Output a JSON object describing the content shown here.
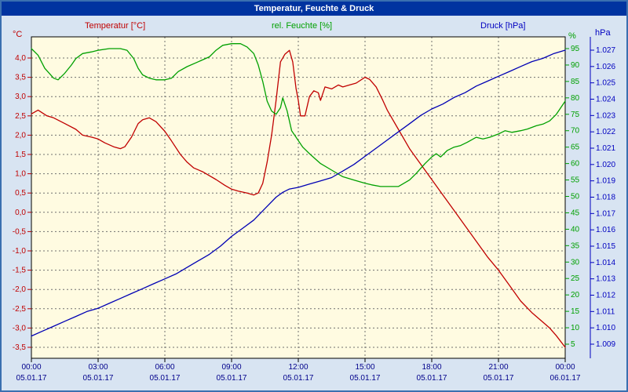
{
  "window": {
    "title": "Temperatur, Feuchte & Druck"
  },
  "legend": {
    "temperature": "Temperatur [°C]",
    "humidity": "rel. Feuchte [%]",
    "pressure": "Druck [hPa]"
  },
  "colors": {
    "titlebar_bg": "#0033a0",
    "titlebar_text": "#ffffff",
    "outer_bg": "#d8e4f2",
    "border": "#3a6fb0",
    "plot_bg": "#fffbe1",
    "frame": "#000000",
    "grid": "#707070",
    "temperature": "#c00000",
    "humidity": "#00a000",
    "pressure": "#0000b4",
    "x_label": "#00008b"
  },
  "axes": {
    "temperature": {
      "unit": "°C",
      "color": "#c00000",
      "tick_values": [
        4.0,
        3.5,
        3.0,
        2.5,
        2.0,
        1.5,
        1.0,
        0.5,
        0.0,
        -0.5,
        -1.0,
        -1.5,
        -2.0,
        -2.5,
        -3.0,
        -3.5
      ],
      "tick_labels": [
        "4,0",
        "3,5",
        "3,0",
        "2,5",
        "2,0",
        "1,5",
        "1,0",
        "0,5",
        "0,0",
        "-0,5",
        "-1,0",
        "-1,5",
        "-2,0",
        "-2,5",
        "-3,0",
        "-3,5"
      ]
    },
    "humidity": {
      "unit": "%",
      "color": "#00a000",
      "tick_values": [
        95,
        90,
        85,
        80,
        75,
        70,
        65,
        60,
        55,
        50,
        45,
        40,
        35,
        30,
        25,
        20,
        15,
        10,
        5
      ],
      "tick_labels": [
        "95",
        "90",
        "85",
        "80",
        "75",
        "70",
        "65",
        "60",
        "55",
        "50",
        "45",
        "40",
        "35",
        "30",
        "25",
        "20",
        "15",
        "10",
        "5"
      ]
    },
    "pressure": {
      "unit": "hPa",
      "color": "#0000c0",
      "tick_values": [
        1027,
        1026,
        1025,
        1024,
        1023,
        1022,
        1021,
        1020,
        1019,
        1018,
        1017,
        1016,
        1015,
        1014,
        1013,
        1012,
        1011,
        1010,
        1009
      ],
      "tick_labels": [
        "1.027",
        "1.026",
        "1.025",
        "1.024",
        "1.023",
        "1.022",
        "1.021",
        "1.020",
        "1.019",
        "1.018",
        "1.017",
        "1.016",
        "1.015",
        "1.014",
        "1.013",
        "1.012",
        "1.011",
        "1.010",
        "1.009"
      ]
    },
    "x": {
      "tick_hours": [
        0,
        3,
        6,
        9,
        12,
        15,
        18,
        21,
        24
      ],
      "tick_times": [
        "00:00",
        "03:00",
        "06:00",
        "09:00",
        "12:00",
        "15:00",
        "18:00",
        "21:00",
        "00:00"
      ],
      "tick_dates": [
        "05.01.17",
        "05.01.17",
        "05.01.17",
        "05.01.17",
        "05.01.17",
        "05.01.17",
        "05.01.17",
        "05.01.17",
        "06.01.17"
      ]
    }
  },
  "chart_data": {
    "type": "line",
    "title": "Temperatur, Feuchte & Druck",
    "x": {
      "unit": "hours",
      "range_hours": [
        0,
        24
      ],
      "tick_hours": [
        0,
        3,
        6,
        9,
        12,
        15,
        18,
        21,
        24
      ],
      "tick_times": [
        "00:00",
        "03:00",
        "06:00",
        "09:00",
        "12:00",
        "15:00",
        "18:00",
        "21:00",
        "00:00"
      ],
      "tick_dates": [
        "05.01.17",
        "05.01.17",
        "05.01.17",
        "05.01.17",
        "05.01.17",
        "05.01.17",
        "05.01.17",
        "05.01.17",
        "06.01.17"
      ]
    },
    "y_axes": {
      "temperature": {
        "label": "Temperatur [°C]",
        "unit": "°C",
        "min": -3.5,
        "max": 4.0,
        "tick_step": 0.5,
        "side": "left"
      },
      "humidity": {
        "label": "rel. Feuchte [%]",
        "unit": "%",
        "min": 5,
        "max": 95,
        "tick_step": 5,
        "side": "right-inner"
      },
      "pressure": {
        "label": "Druck [hPa]",
        "unit": "hPa",
        "min": 1009,
        "max": 1027,
        "tick_step": 1,
        "side": "right-outer"
      }
    },
    "grid": {
      "horizontal": "dashed at each 0.5 °C tick",
      "vertical": "dashed every 3 hours"
    },
    "series": [
      {
        "name": "Temperatur [°C]",
        "axis": "temperature",
        "color": "#c00000",
        "points": [
          [
            0,
            2.55
          ],
          [
            0.3,
            2.65
          ],
          [
            0.7,
            2.5
          ],
          [
            1,
            2.45
          ],
          [
            1.5,
            2.3
          ],
          [
            2,
            2.15
          ],
          [
            2.3,
            2.0
          ],
          [
            2.7,
            1.95
          ],
          [
            3,
            1.9
          ],
          [
            3.3,
            1.8
          ],
          [
            3.7,
            1.7
          ],
          [
            4,
            1.65
          ],
          [
            4.2,
            1.7
          ],
          [
            4.5,
            1.95
          ],
          [
            4.8,
            2.3
          ],
          [
            5,
            2.4
          ],
          [
            5.3,
            2.45
          ],
          [
            5.6,
            2.35
          ],
          [
            6,
            2.1
          ],
          [
            6.3,
            1.85
          ],
          [
            6.7,
            1.5
          ],
          [
            7,
            1.3
          ],
          [
            7.3,
            1.15
          ],
          [
            7.7,
            1.05
          ],
          [
            8,
            0.95
          ],
          [
            8.3,
            0.85
          ],
          [
            8.7,
            0.7
          ],
          [
            9,
            0.6
          ],
          [
            9.3,
            0.55
          ],
          [
            9.7,
            0.5
          ],
          [
            10,
            0.45
          ],
          [
            10.2,
            0.5
          ],
          [
            10.4,
            0.75
          ],
          [
            10.6,
            1.3
          ],
          [
            10.8,
            2.0
          ],
          [
            11,
            2.9
          ],
          [
            11.2,
            3.9
          ],
          [
            11.4,
            4.1
          ],
          [
            11.6,
            4.2
          ],
          [
            11.75,
            3.9
          ],
          [
            11.9,
            3.2
          ],
          [
            12,
            2.9
          ],
          [
            12.1,
            2.5
          ],
          [
            12.3,
            2.5
          ],
          [
            12.5,
            3.0
          ],
          [
            12.7,
            3.15
          ],
          [
            12.9,
            3.1
          ],
          [
            13,
            2.9
          ],
          [
            13.2,
            3.25
          ],
          [
            13.5,
            3.2
          ],
          [
            13.8,
            3.3
          ],
          [
            14,
            3.25
          ],
          [
            14.3,
            3.3
          ],
          [
            14.6,
            3.35
          ],
          [
            15,
            3.5
          ],
          [
            15.2,
            3.45
          ],
          [
            15.5,
            3.25
          ],
          [
            15.8,
            2.9
          ],
          [
            16,
            2.65
          ],
          [
            16.5,
            2.15
          ],
          [
            17,
            1.65
          ],
          [
            17.5,
            1.25
          ],
          [
            18,
            0.85
          ],
          [
            18.5,
            0.45
          ],
          [
            19,
            0.05
          ],
          [
            19.5,
            -0.35
          ],
          [
            20,
            -0.75
          ],
          [
            20.5,
            -1.15
          ],
          [
            21,
            -1.5
          ],
          [
            21.5,
            -1.9
          ],
          [
            22,
            -2.3
          ],
          [
            22.5,
            -2.6
          ],
          [
            23,
            -2.85
          ],
          [
            23.3,
            -3.0
          ],
          [
            23.6,
            -3.2
          ],
          [
            24,
            -3.5
          ]
        ]
      },
      {
        "name": "rel. Feuchte [%]",
        "axis": "humidity",
        "color": "#00a000",
        "points": [
          [
            0,
            95
          ],
          [
            0.3,
            93
          ],
          [
            0.6,
            89
          ],
          [
            1,
            86
          ],
          [
            1.2,
            85.5
          ],
          [
            1.5,
            87.5
          ],
          [
            1.8,
            90
          ],
          [
            2,
            92
          ],
          [
            2.3,
            93.5
          ],
          [
            2.7,
            94
          ],
          [
            3,
            94.5
          ],
          [
            3.5,
            95
          ],
          [
            4,
            95
          ],
          [
            4.3,
            94.5
          ],
          [
            4.6,
            92
          ],
          [
            4.8,
            89
          ],
          [
            5,
            87
          ],
          [
            5.3,
            86
          ],
          [
            5.6,
            85.5
          ],
          [
            6,
            85.5
          ],
          [
            6.3,
            86
          ],
          [
            6.6,
            88
          ],
          [
            7,
            89.5
          ],
          [
            7.5,
            91
          ],
          [
            8,
            92.5
          ],
          [
            8.3,
            94.5
          ],
          [
            8.6,
            96
          ],
          [
            9,
            96.5
          ],
          [
            9.4,
            96.5
          ],
          [
            9.7,
            95.5
          ],
          [
            10,
            93.5
          ],
          [
            10.2,
            90
          ],
          [
            10.4,
            85
          ],
          [
            10.6,
            79
          ],
          [
            10.8,
            76
          ],
          [
            11,
            75
          ],
          [
            11.2,
            77
          ],
          [
            11.3,
            80
          ],
          [
            11.5,
            76
          ],
          [
            11.7,
            70
          ],
          [
            11.9,
            68
          ],
          [
            12,
            67
          ],
          [
            12.2,
            65
          ],
          [
            12.5,
            63
          ],
          [
            13,
            60
          ],
          [
            13.5,
            58
          ],
          [
            14,
            56
          ],
          [
            14.5,
            55
          ],
          [
            15,
            54
          ],
          [
            15.3,
            53.5
          ],
          [
            15.7,
            53
          ],
          [
            16,
            53
          ],
          [
            16.5,
            53
          ],
          [
            17,
            55
          ],
          [
            17.3,
            57
          ],
          [
            17.7,
            60
          ],
          [
            18,
            62
          ],
          [
            18.2,
            63
          ],
          [
            18.4,
            62
          ],
          [
            18.7,
            64
          ],
          [
            19,
            65
          ],
          [
            19.3,
            65.5
          ],
          [
            19.6,
            66.5
          ],
          [
            20,
            68
          ],
          [
            20.3,
            67.5
          ],
          [
            20.6,
            68
          ],
          [
            21,
            69
          ],
          [
            21.3,
            70
          ],
          [
            21.6,
            69.5
          ],
          [
            22,
            70
          ],
          [
            22.3,
            70.5
          ],
          [
            22.7,
            71.5
          ],
          [
            23,
            72
          ],
          [
            23.3,
            73
          ],
          [
            23.6,
            75
          ],
          [
            24,
            79
          ]
        ]
      },
      {
        "name": "Druck [hPa]",
        "axis": "pressure",
        "color": "#0000b4",
        "points": [
          [
            0,
            1009.5
          ],
          [
            0.5,
            1009.8
          ],
          [
            1,
            1010.1
          ],
          [
            1.5,
            1010.4
          ],
          [
            2,
            1010.7
          ],
          [
            2.5,
            1011.0
          ],
          [
            3,
            1011.2
          ],
          [
            3.5,
            1011.5
          ],
          [
            4,
            1011.8
          ],
          [
            4.5,
            1012.1
          ],
          [
            5,
            1012.4
          ],
          [
            5.5,
            1012.7
          ],
          [
            6,
            1013.0
          ],
          [
            6.5,
            1013.3
          ],
          [
            7,
            1013.7
          ],
          [
            7.5,
            1014.1
          ],
          [
            8,
            1014.5
          ],
          [
            8.5,
            1015.0
          ],
          [
            9,
            1015.6
          ],
          [
            9.5,
            1016.1
          ],
          [
            10,
            1016.6
          ],
          [
            10.5,
            1017.3
          ],
          [
            11,
            1018.0
          ],
          [
            11.3,
            1018.3
          ],
          [
            11.6,
            1018.5
          ],
          [
            12,
            1018.6
          ],
          [
            12.5,
            1018.8
          ],
          [
            13,
            1019.0
          ],
          [
            13.5,
            1019.2
          ],
          [
            14,
            1019.6
          ],
          [
            14.5,
            1020.0
          ],
          [
            15,
            1020.5
          ],
          [
            15.5,
            1021.0
          ],
          [
            16,
            1021.5
          ],
          [
            16.5,
            1022.0
          ],
          [
            17,
            1022.5
          ],
          [
            17.5,
            1023.0
          ],
          [
            18,
            1023.4
          ],
          [
            18.5,
            1023.7
          ],
          [
            19,
            1024.1
          ],
          [
            19.5,
            1024.4
          ],
          [
            20,
            1024.8
          ],
          [
            20.5,
            1025.1
          ],
          [
            21,
            1025.4
          ],
          [
            21.5,
            1025.7
          ],
          [
            22,
            1026.0
          ],
          [
            22.5,
            1026.3
          ],
          [
            23,
            1026.5
          ],
          [
            23.5,
            1026.8
          ],
          [
            24,
            1027.0
          ]
        ]
      }
    ]
  }
}
